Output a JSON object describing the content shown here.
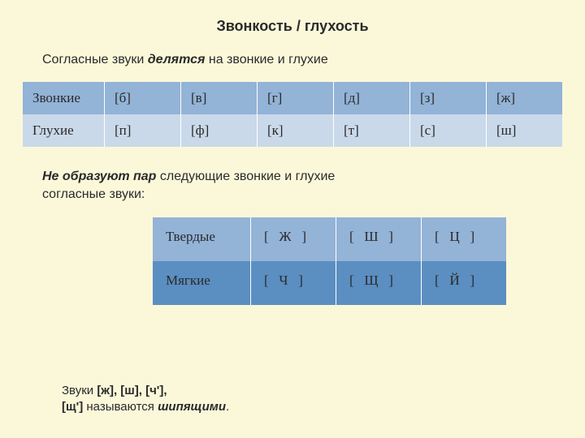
{
  "title": "Звонкость / глухость",
  "intro_pre": "Согласные звуки ",
  "intro_bold": "делятся",
  "intro_post": " на звонкие и глухие",
  "table1": {
    "row1_label": "Звонкие",
    "row1": [
      "[б]",
      "[в]",
      "[г]",
      "[д]",
      "[з]",
      "[ж]"
    ],
    "row2_label": "Глухие",
    "row2": [
      "[п]",
      "[ф]",
      "[к]",
      "[т]",
      "[с]",
      "[ш]"
    ]
  },
  "mid_bold": "Не образуют пар",
  "mid_post1": " следующие звонкие и глухие",
  "mid_post2": "согласные звуки:",
  "table2": {
    "row1_label": "Твердые",
    "row1": [
      "[   Ж   ]",
      "[   Ш   ]",
      "[   Ц   ]"
    ],
    "row2_label": "Мягкие",
    "row2": [
      "[   Ч   ]",
      "[   Щ   ]",
      "[   Й   ]"
    ]
  },
  "footer_line1": "Звуки ",
  "footer_bold1": "[ж], [ш], [ч'],",
  "footer_bold2": "[щ']",
  "footer_mid": " называются ",
  "footer_ital": "шипящими",
  "footer_dot": ".",
  "colors": {
    "page_bg": "#fbf8da",
    "t1_row1": "#93b3d7",
    "t1_row2": "#cad9ea",
    "t2_row1": "#93b3d7",
    "t2_row2": "#5b8ec1"
  }
}
